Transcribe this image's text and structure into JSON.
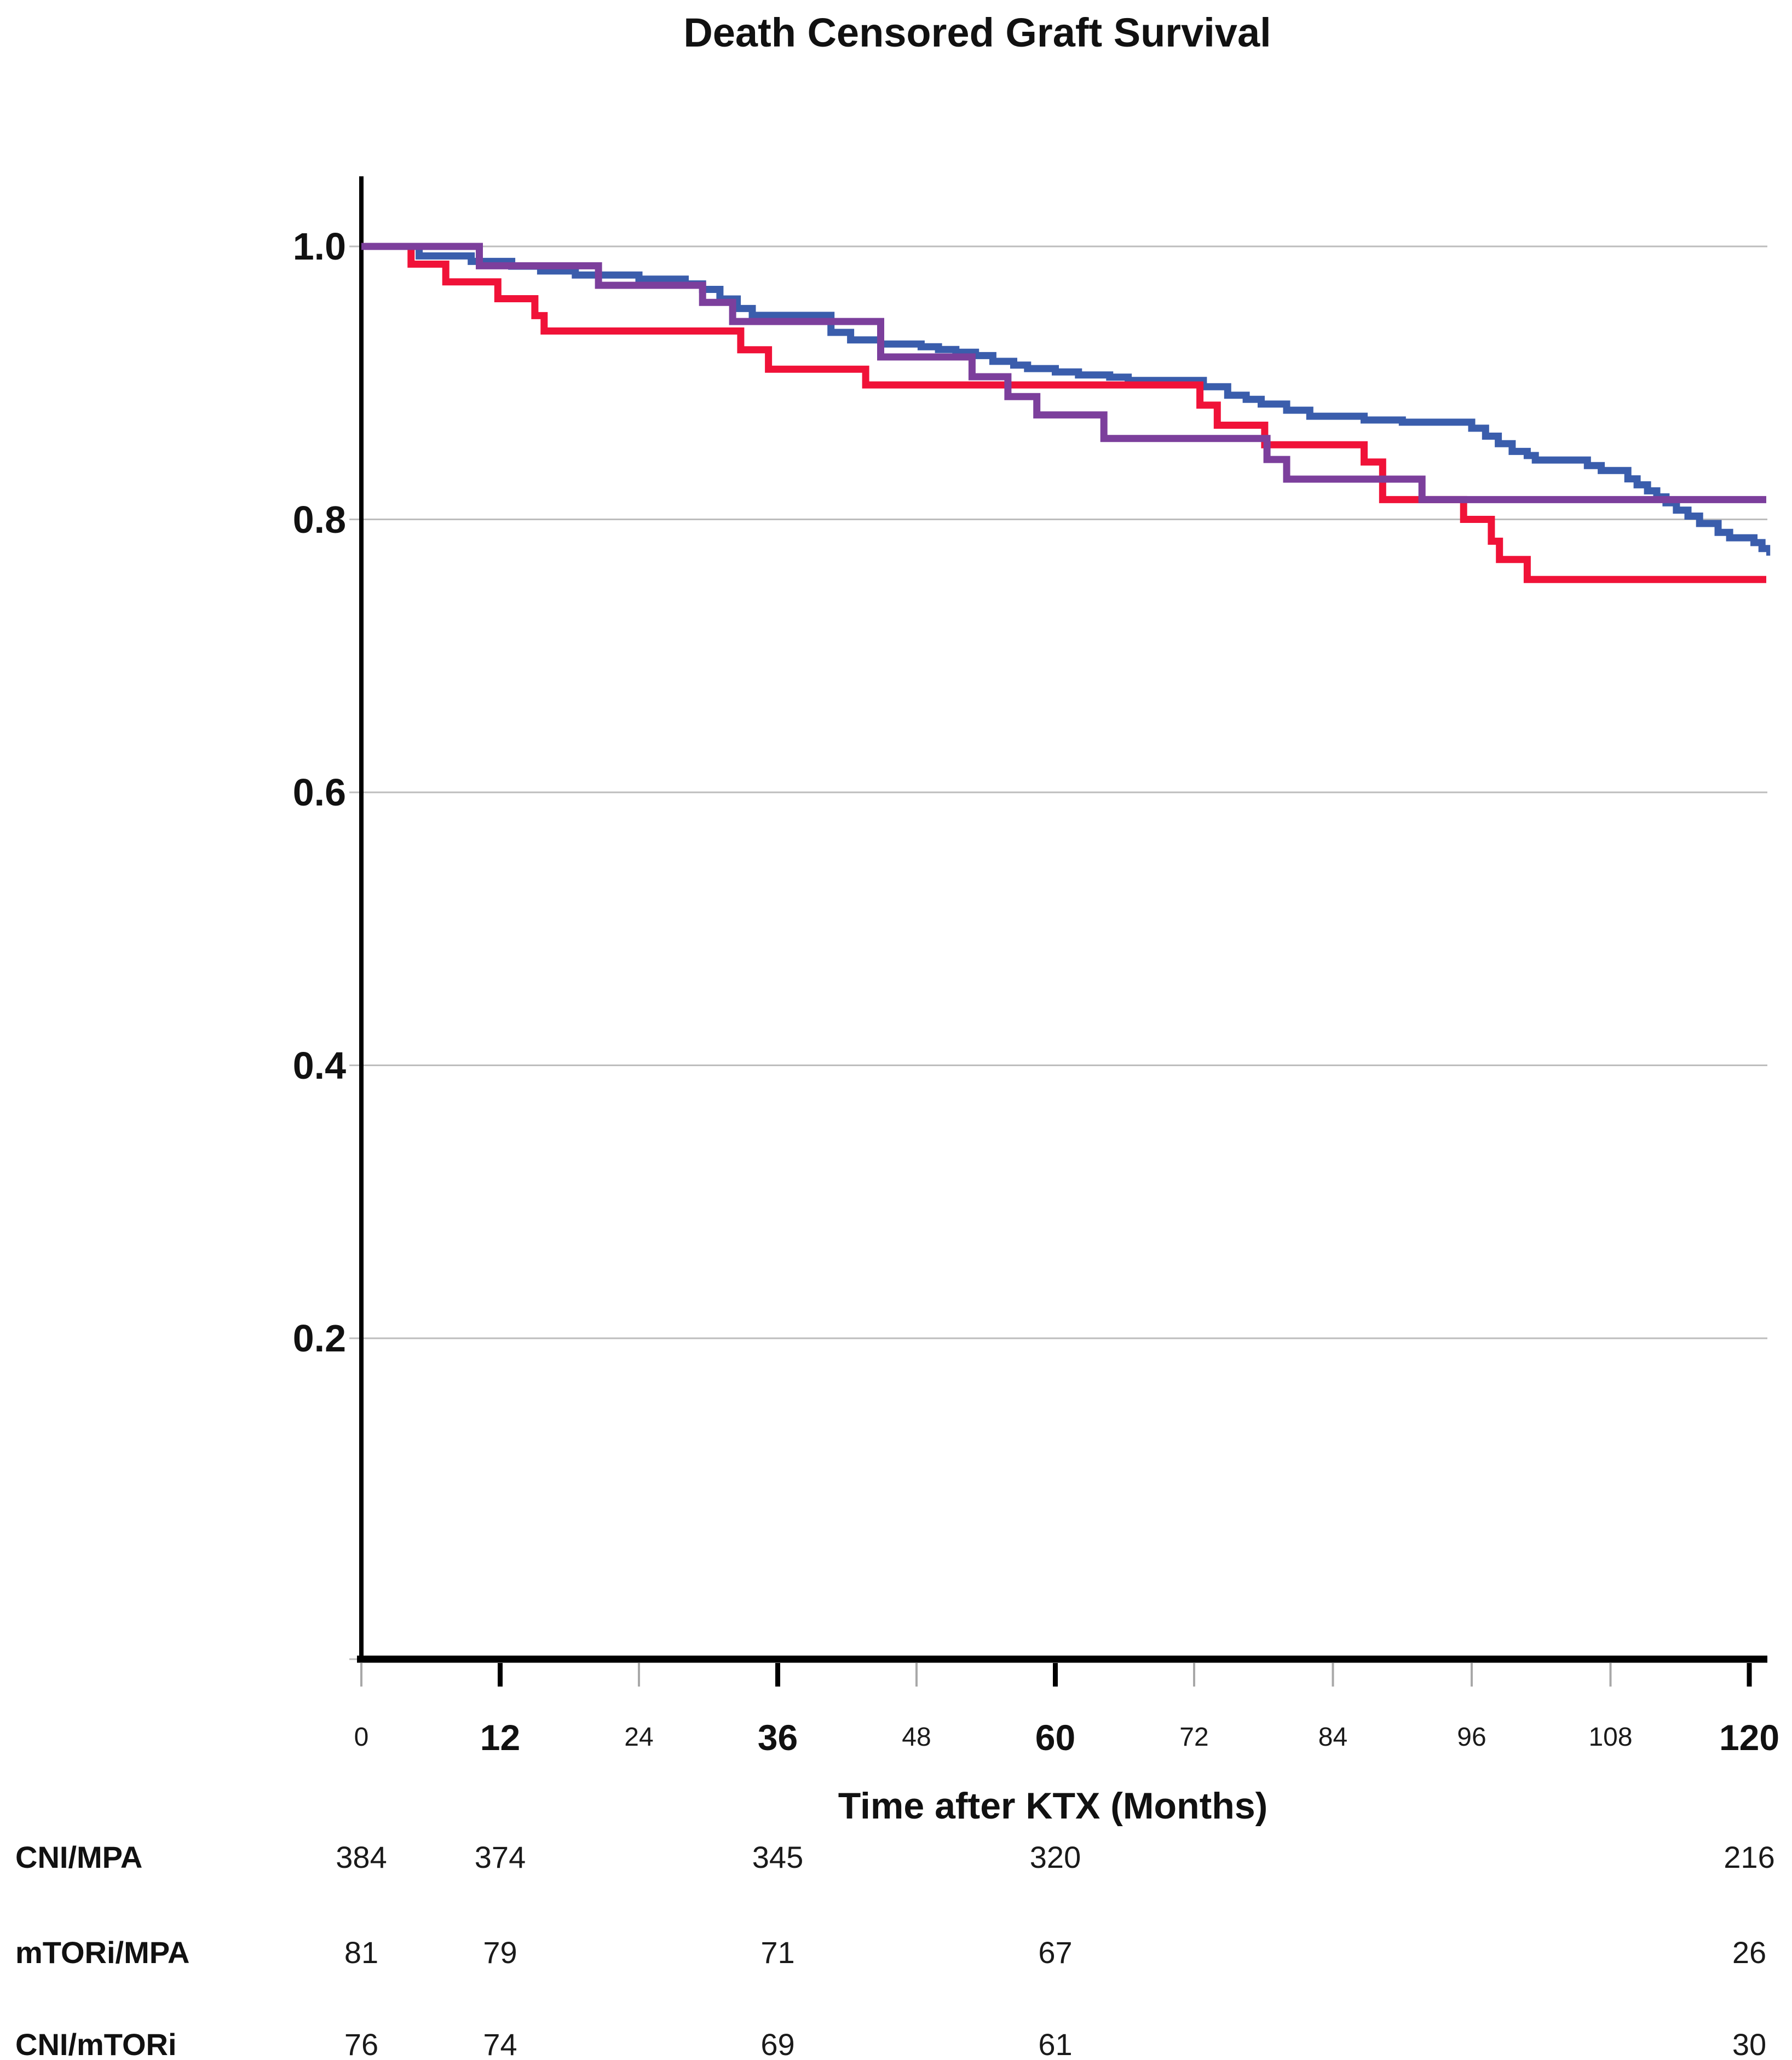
{
  "title": "Death Censored Graft Survival",
  "chart_data": {
    "type": "line",
    "subtype": "kaplan-meier-step",
    "title": "Death Censored Graft Survival",
    "xlabel": "Time after KTX (Months)",
    "ylabel": "",
    "xlim": [
      0,
      121.6
    ],
    "ylim": [
      0,
      1.05
    ],
    "grid": "horizontal",
    "legend_position": "none",
    "x_ticks": [
      {
        "label": "0",
        "value": 0,
        "bold": false
      },
      {
        "label": "12",
        "value": 12,
        "bold": true
      },
      {
        "label": "24",
        "value": 24,
        "bold": false
      },
      {
        "label": "36",
        "value": 36,
        "bold": true
      },
      {
        "label": "48",
        "value": 48,
        "bold": false
      },
      {
        "label": "60",
        "value": 60,
        "bold": true
      },
      {
        "label": "72",
        "value": 72,
        "bold": false
      },
      {
        "label": "84",
        "value": 84,
        "bold": false
      },
      {
        "label": "96",
        "value": 96,
        "bold": false
      },
      {
        "label": "108",
        "value": 108,
        "bold": false
      },
      {
        "label": "120",
        "value": 120,
        "bold": true
      }
    ],
    "y_ticks": [
      {
        "label": "1.0",
        "value": 1.0
      },
      {
        "label": "0.8",
        "value": 0.8
      },
      {
        "label": "0.6",
        "value": 0.6
      },
      {
        "label": "0.4",
        "value": 0.4
      },
      {
        "label": "0.2",
        "value": 0.2
      }
    ],
    "colors": {
      "grid": "#BDBDBD",
      "axis": "#000000",
      "minor_tick": "#A8A8A8"
    },
    "series": [
      {
        "name": "CNI/MPA",
        "color": "#3A5DAC",
        "steps": [
          [
            0,
            1.0
          ],
          [
            5,
            0.993
          ],
          [
            9.5,
            0.989
          ],
          [
            13,
            0.9855
          ],
          [
            15.5,
            0.982
          ],
          [
            18.5,
            0.979
          ],
          [
            24,
            0.976
          ],
          [
            28,
            0.9725
          ],
          [
            29.5,
            0.9685
          ],
          [
            31,
            0.9615
          ],
          [
            32.5,
            0.9545
          ],
          [
            33.8,
            0.9495
          ],
          [
            40.6,
            0.937
          ],
          [
            42.3,
            0.9315
          ],
          [
            44.9,
            0.9285
          ],
          [
            48.4,
            0.9265
          ],
          [
            49.9,
            0.9245
          ],
          [
            51.4,
            0.9225
          ],
          [
            53.1,
            0.92
          ],
          [
            54.6,
            0.9158
          ],
          [
            56.4,
            0.913
          ],
          [
            57.6,
            0.9105
          ],
          [
            60,
            0.908
          ],
          [
            62,
            0.9058
          ],
          [
            64.7,
            0.9042
          ],
          [
            66.3,
            0.9018
          ],
          [
            72.8,
            0.8972
          ],
          [
            74.9,
            0.891
          ],
          [
            76.5,
            0.888
          ],
          [
            77.8,
            0.8845
          ],
          [
            80,
            0.88
          ],
          [
            82,
            0.8756
          ],
          [
            86.7,
            0.8728
          ],
          [
            90,
            0.8712
          ],
          [
            96,
            0.8668
          ],
          [
            97.2,
            0.861
          ],
          [
            98.3,
            0.8555
          ],
          [
            99.5,
            0.8498
          ],
          [
            100.8,
            0.8468
          ],
          [
            101.5,
            0.8435
          ],
          [
            106,
            0.8394
          ],
          [
            107.2,
            0.8358
          ],
          [
            109.5,
            0.8297
          ],
          [
            110.3,
            0.8253
          ],
          [
            111.2,
            0.8209
          ],
          [
            112,
            0.8165
          ],
          [
            112.8,
            0.8121
          ],
          [
            113.7,
            0.8068
          ],
          [
            114.7,
            0.8024
          ],
          [
            115.7,
            0.797
          ],
          [
            117.3,
            0.7905
          ],
          [
            118.3,
            0.7865
          ],
          [
            120.4,
            0.783
          ],
          [
            121.1,
            0.7786
          ],
          [
            121.5,
            0.776
          ]
        ]
      },
      {
        "name": "mTORi/MPA",
        "color": "#F01238",
        "steps": [
          [
            0,
            1.0
          ],
          [
            4.3,
            0.987
          ],
          [
            7.3,
            0.974
          ],
          [
            11.8,
            0.9617
          ],
          [
            15,
            0.9493
          ],
          [
            15.8,
            0.938
          ],
          [
            32.8,
            0.9243
          ],
          [
            35.2,
            0.91
          ],
          [
            43.6,
            0.8985
          ],
          [
            72.5,
            0.8837
          ],
          [
            74,
            0.869
          ],
          [
            78.1,
            0.8547
          ],
          [
            86.7,
            0.842
          ],
          [
            88.3,
            0.8145
          ],
          [
            95.3,
            0.8
          ],
          [
            97.7,
            0.784
          ],
          [
            98.4,
            0.7706
          ],
          [
            100.8,
            0.756
          ]
        ]
      },
      {
        "name": "CNI/mTORi",
        "color": "#7C3F9C",
        "steps": [
          [
            0,
            1.0
          ],
          [
            10.2,
            0.9858
          ],
          [
            20.5,
            0.9715
          ],
          [
            29.5,
            0.959
          ],
          [
            32.1,
            0.945
          ],
          [
            44.9,
            0.919
          ],
          [
            52.8,
            0.9045
          ],
          [
            55.9,
            0.89
          ],
          [
            58.4,
            0.8765
          ],
          [
            64.2,
            0.8593
          ],
          [
            78.3,
            0.8439
          ],
          [
            80,
            0.8295
          ],
          [
            91.7,
            0.8145
          ]
        ]
      }
    ],
    "risk_table": {
      "times": [
        0,
        12,
        36,
        60,
        120
      ],
      "rows": [
        {
          "label": "CNI/MPA",
          "counts": [
            "384",
            "374",
            "345",
            "320",
            "216"
          ]
        },
        {
          "label": "mTORi/MPA",
          "counts": [
            "81",
            "79",
            "71",
            "67",
            "26"
          ]
        },
        {
          "label": "CNI/mTORi",
          "counts": [
            "76",
            "74",
            "69",
            "61",
            "30"
          ]
        }
      ]
    }
  }
}
